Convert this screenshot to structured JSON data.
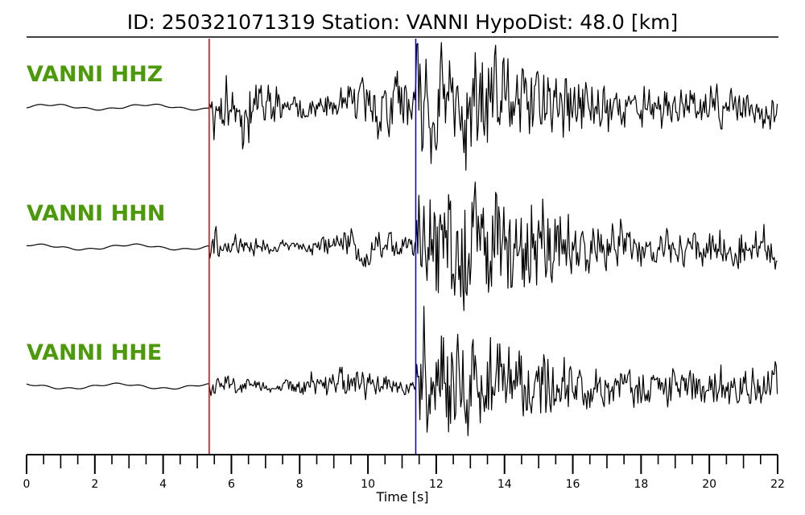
{
  "title": "ID: 250321071319   Station: VANNI   HypoDist:    48.0 [km]",
  "chart_data": {
    "type": "line",
    "xlabel": "Time [s]",
    "xlim": [
      0,
      22
    ],
    "x_ticks": [
      "0",
      "2",
      "4",
      "6",
      "8",
      "10",
      "12",
      "14",
      "16",
      "18",
      "20",
      "22"
    ],
    "minor_tick_step": 0.5,
    "grid": false,
    "label_color": "#4c9a0a",
    "p_pick": {
      "time": 5.35,
      "color": "#e00000"
    },
    "s_pick": {
      "time": 11.4,
      "color": "#0000d0"
    },
    "series": [
      {
        "name": "VANNI HHZ",
        "noise_amp": 0.04,
        "p_amp": 0.42,
        "s_amp": 0.78,
        "peak_time": 12.8,
        "seed": 11
      },
      {
        "name": "VANNI HHN",
        "noise_amp": 0.04,
        "p_amp": 0.22,
        "s_amp": 0.85,
        "peak_time": 12.7,
        "seed": 29
      },
      {
        "name": "VANNI HHE",
        "noise_amp": 0.04,
        "p_amp": 0.22,
        "s_amp": 0.82,
        "peak_time": 11.5,
        "seed": 47
      }
    ]
  }
}
